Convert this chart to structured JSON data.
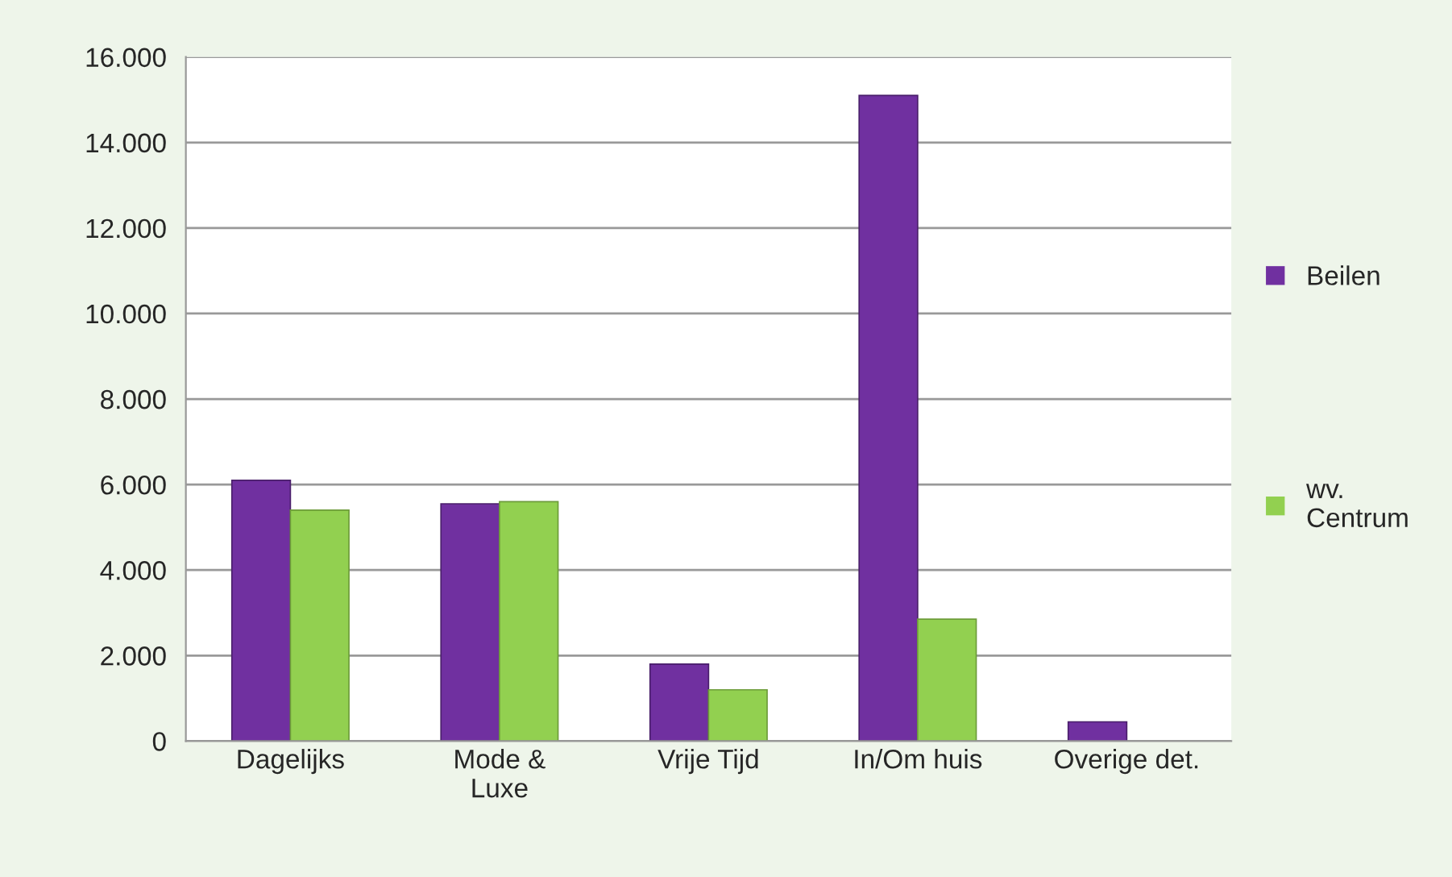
{
  "chart_data": {
    "type": "bar",
    "categories": [
      "Dagelijks",
      "Mode &\nLuxe",
      "Vrije Tijd",
      "In/Om huis",
      "Overige det."
    ],
    "series": [
      {
        "name": "Beilen",
        "color": "#7030a0",
        "values": [
          6100,
          5550,
          1800,
          15100,
          450
        ]
      },
      {
        "name": "wv.\nCentrum",
        "color": "#92d050",
        "values": [
          5400,
          5600,
          1200,
          2850,
          null
        ]
      }
    ],
    "ylim": [
      0,
      16000
    ],
    "yticks": [
      {
        "value": 0,
        "label": "0"
      },
      {
        "value": 2000,
        "label": "2.000"
      },
      {
        "value": 4000,
        "label": "4.000"
      },
      {
        "value": 6000,
        "label": "6.000"
      },
      {
        "value": 8000,
        "label": "8.000"
      },
      {
        "value": 10000,
        "label": "10.000"
      },
      {
        "value": 12000,
        "label": "12.000"
      },
      {
        "value": 14000,
        "label": "14.000"
      },
      {
        "value": 16000,
        "label": "16.000"
      }
    ],
    "grid": "y",
    "legend": "right"
  }
}
